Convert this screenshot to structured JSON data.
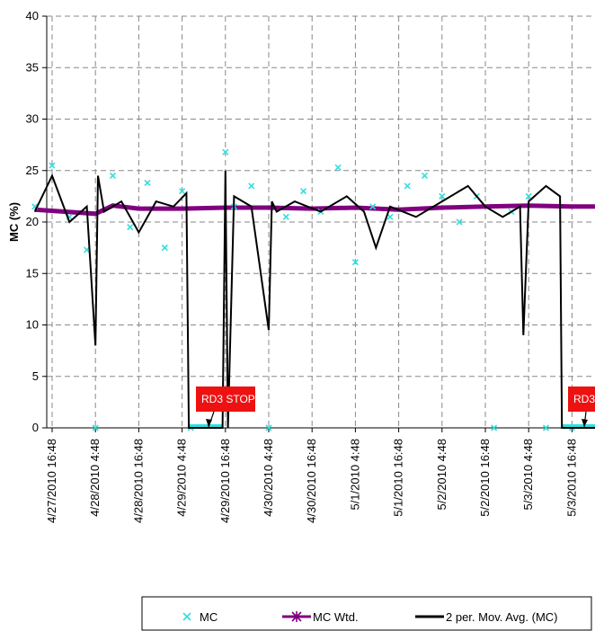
{
  "chart_data": {
    "type": "line",
    "title": "",
    "xlabel": "",
    "ylabel": "MC (%)",
    "ylim": [
      0,
      40
    ],
    "yticks": [
      "0",
      "5",
      "10",
      "15",
      "20",
      "25",
      "30",
      "35",
      "40"
    ],
    "x_tick_labels": [
      "4/27/2010 16:48",
      "4/28/2010 4:48",
      "4/28/2010 16:48",
      "4/29/2010 4:48",
      "4/29/2010 16:48",
      "4/30/2010 4:48",
      "4/30/2010 16:48",
      "5/1/2010 4:48",
      "5/1/2010 16:48",
      "5/2/2010 4:48",
      "5/2/2010 16:48",
      "5/3/2010 4:48",
      "5/3/2010 16:48"
    ],
    "grid": true,
    "legend_position": "bottom",
    "series": [
      {
        "name": "MC",
        "marker": "x",
        "color": "#33dddd",
        "x": [
          "4/27/2010 12:00",
          "4/27/2010 16:48",
          "4/27/2010 21:36",
          "4/28/2010 2:24",
          "4/28/2010 4:48",
          "4/28/2010 9:36",
          "4/28/2010 14:24",
          "4/28/2010 19:12",
          "4/29/2010 0:00",
          "4/29/2010 4:48",
          "4/29/2010 7:12",
          "4/29/2010 16:48",
          "4/29/2010 19:12",
          "4/30/2010 0:00",
          "4/30/2010 4:48",
          "4/30/2010 9:36",
          "4/30/2010 14:24",
          "4/30/2010 19:12",
          "5/1/2010 0:00",
          "5/1/2010 4:48",
          "5/1/2010 9:36",
          "5/1/2010 14:24",
          "5/1/2010 19:12",
          "5/2/2010 0:00",
          "5/2/2010 4:48",
          "5/2/2010 9:36",
          "5/2/2010 14:24",
          "5/2/2010 19:12",
          "5/3/2010 0:00",
          "5/3/2010 4:48",
          "5/3/2010 9:36",
          "5/3/2010 16:48"
        ],
        "y": [
          21.5,
          25.5,
          20.5,
          17.3,
          0,
          24.5,
          19.5,
          23.8,
          17.5,
          23,
          0,
          26.8,
          21.5,
          23.5,
          0,
          20.5,
          23,
          21,
          25.3,
          16.1,
          21.5,
          20.5,
          23.5,
          24.5,
          22.5,
          20,
          22.5,
          0,
          21,
          22.5,
          0,
          0
        ]
      },
      {
        "name": "MC Wtd.",
        "marker": "star",
        "color": "#800080",
        "x": [
          "4/27/2010 12:00",
          "4/28/2010 4:48",
          "4/28/2010 9:36",
          "4/28/2010 16:48",
          "4/29/2010 4:48",
          "4/29/2010 16:48",
          "4/30/2010 4:48",
          "4/30/2010 16:48",
          "5/1/2010 4:48",
          "5/1/2010 16:48",
          "5/2/2010 4:48",
          "5/2/2010 16:48",
          "5/3/2010 4:48",
          "5/3/2010 16:48",
          "5/4/2010 0:00"
        ],
        "y": [
          21.2,
          20.8,
          21.6,
          21.3,
          21.3,
          21.4,
          21.4,
          21.3,
          21.4,
          21.2,
          21.4,
          21.5,
          21.6,
          21.5,
          21.5
        ]
      },
      {
        "name": "2 per. Mov. Avg. (MC)",
        "color": "#000000",
        "x": [
          "4/27/2010 12:00",
          "4/27/2010 16:48",
          "4/27/2010 21:36",
          "4/28/2010 2:24",
          "4/28/2010 4:48",
          "4/28/2010 5:30",
          "4/28/2010 7:12",
          "4/28/2010 12:00",
          "4/28/2010 16:48",
          "4/28/2010 21:36",
          "4/29/2010 2:24",
          "4/29/2010 6:00",
          "4/29/2010 6:40",
          "4/29/2010 16:00",
          "4/29/2010 16:48",
          "4/29/2010 17:30",
          "4/29/2010 19:12",
          "4/30/2010 0:00",
          "4/30/2010 4:48",
          "4/30/2010 5:40",
          "4/30/2010 7:00",
          "4/30/2010 12:00",
          "4/30/2010 19:12",
          "5/1/2010 2:24",
          "5/1/2010 7:12",
          "5/1/2010 10:30",
          "5/1/2010 14:24",
          "5/1/2010 21:36",
          "5/2/2010 4:48",
          "5/2/2010 12:00",
          "5/2/2010 16:48",
          "5/2/2010 21:36",
          "5/3/2010 2:24",
          "5/3/2010 3:20",
          "5/3/2010 4:48",
          "5/3/2010 9:36",
          "5/3/2010 13:30",
          "5/3/2010 14:00",
          "5/3/2010 16:48",
          "5/4/2010 0:00"
        ],
        "y": [
          21,
          24.5,
          20,
          21.5,
          8,
          24.5,
          21,
          22,
          19,
          22,
          21.5,
          22.8,
          0,
          0,
          25,
          0,
          22.5,
          21.5,
          9.5,
          22,
          21,
          22,
          21,
          22.5,
          21,
          17.5,
          21.5,
          20.5,
          22,
          23.5,
          21.5,
          20.5,
          21.5,
          9,
          22,
          23.5,
          22.5,
          0,
          0,
          0
        ]
      }
    ],
    "annotations": [
      {
        "text": "RD3 STOP",
        "x": "4/29/2010 14:00",
        "y": 0
      },
      {
        "text": "RD3",
        "x": "5/3/2010 21:36",
        "y": 0
      }
    ]
  }
}
